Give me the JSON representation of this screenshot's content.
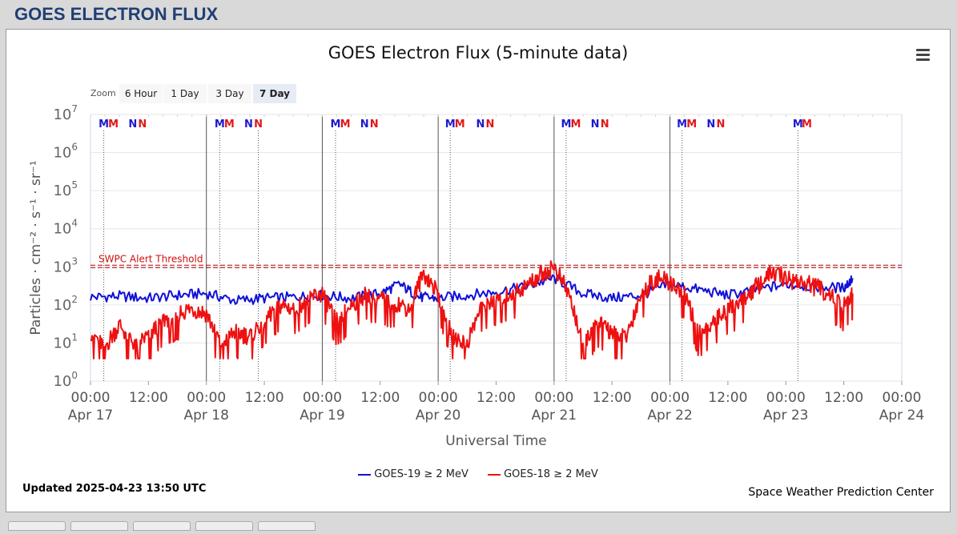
{
  "page": {
    "title": "GOES ELECTRON FLUX"
  },
  "chart": {
    "title": "GOES Electron Flux (5-minute data)",
    "zoom_label": "Zoom",
    "zoom_buttons": [
      "6 Hour",
      "1 Day",
      "3 Day",
      "7 Day"
    ],
    "zoom_selected": "7 Day",
    "updated": "Updated 2025-04-23 13:50 UTC",
    "credit": "Space Weather Prediction Center",
    "colors": {
      "goes19": "#1010d8",
      "goes18": "#ee1111",
      "threshold": "#b00000"
    }
  },
  "chart_data": {
    "type": "line",
    "title": "GOES Electron Flux (5-minute data)",
    "xlabel": "Universal Time",
    "ylabel": "Particles · cm⁻² · s⁻¹ · sr⁻¹",
    "y_scale": "log",
    "ylim": [
      1,
      10000000
    ],
    "xlim": [
      "2025-04-17 00:00",
      "2025-04-24 00:00"
    ],
    "y_ticks": [
      {
        "value": 1,
        "base": "10",
        "exp": "0"
      },
      {
        "value": 10,
        "base": "10",
        "exp": "1"
      },
      {
        "value": 100,
        "base": "10",
        "exp": "2"
      },
      {
        "value": 1000,
        "base": "10",
        "exp": "3"
      },
      {
        "value": 10000,
        "base": "10",
        "exp": "4"
      },
      {
        "value": 100000,
        "base": "10",
        "exp": "5"
      },
      {
        "value": 1000000,
        "base": "10",
        "exp": "6"
      },
      {
        "value": 10000000,
        "base": "10",
        "exp": "7"
      }
    ],
    "x_ticks": [
      {
        "at": "2025-04-17 00:00",
        "time": "00:00",
        "date": "Apr 17"
      },
      {
        "at": "2025-04-17 12:00",
        "time": "12:00",
        "date": ""
      },
      {
        "at": "2025-04-18 00:00",
        "time": "00:00",
        "date": "Apr 18"
      },
      {
        "at": "2025-04-18 12:00",
        "time": "12:00",
        "date": ""
      },
      {
        "at": "2025-04-19 00:00",
        "time": "00:00",
        "date": "Apr 19"
      },
      {
        "at": "2025-04-19 12:00",
        "time": "12:00",
        "date": ""
      },
      {
        "at": "2025-04-20 00:00",
        "time": "00:00",
        "date": "Apr 20"
      },
      {
        "at": "2025-04-20 12:00",
        "time": "12:00",
        "date": ""
      },
      {
        "at": "2025-04-21 00:00",
        "time": "00:00",
        "date": "Apr 21"
      },
      {
        "at": "2025-04-21 12:00",
        "time": "12:00",
        "date": ""
      },
      {
        "at": "2025-04-22 00:00",
        "time": "00:00",
        "date": "Apr 22"
      },
      {
        "at": "2025-04-22 12:00",
        "time": "12:00",
        "date": ""
      },
      {
        "at": "2025-04-23 00:00",
        "time": "00:00",
        "date": "Apr 23"
      },
      {
        "at": "2025-04-23 12:00",
        "time": "12:00",
        "date": ""
      },
      {
        "at": "2025-04-24 00:00",
        "time": "00:00",
        "date": "Apr 24"
      }
    ],
    "day_lines": [
      "2025-04-18 00:00",
      "2025-04-19 00:00",
      "2025-04-20 00:00",
      "2025-04-21 00:00",
      "2025-04-22 00:00"
    ],
    "threshold": {
      "value": 1000,
      "label": "SWPC Alert Threshold"
    },
    "markers": [
      {
        "letter": "M",
        "color": "blue",
        "at": "2025-04-17 02:45",
        "line": true
      },
      {
        "letter": "M",
        "color": "red",
        "at": "2025-04-17 04:45",
        "line": false
      },
      {
        "letter": "N",
        "color": "blue",
        "at": "2025-04-17 08:45",
        "line": false
      },
      {
        "letter": "N",
        "color": "red",
        "at": "2025-04-17 10:45",
        "line": false
      },
      {
        "letter": "M",
        "color": "blue",
        "at": "2025-04-18 02:45",
        "line": true
      },
      {
        "letter": "M",
        "color": "red",
        "at": "2025-04-18 04:45",
        "line": false
      },
      {
        "letter": "N",
        "color": "blue",
        "at": "2025-04-18 08:45",
        "line": false
      },
      {
        "letter": "N",
        "color": "red",
        "at": "2025-04-18 10:45",
        "line": true
      },
      {
        "letter": "M",
        "color": "blue",
        "at": "2025-04-19 02:45",
        "line": true
      },
      {
        "letter": "M",
        "color": "red",
        "at": "2025-04-19 04:45",
        "line": false
      },
      {
        "letter": "N",
        "color": "blue",
        "at": "2025-04-19 08:45",
        "line": false
      },
      {
        "letter": "N",
        "color": "red",
        "at": "2025-04-19 10:45",
        "line": false
      },
      {
        "letter": "M",
        "color": "blue",
        "at": "2025-04-20 02:30",
        "line": true
      },
      {
        "letter": "M",
        "color": "red",
        "at": "2025-04-20 04:30",
        "line": false
      },
      {
        "letter": "N",
        "color": "blue",
        "at": "2025-04-20 08:45",
        "line": false
      },
      {
        "letter": "N",
        "color": "red",
        "at": "2025-04-20 10:45",
        "line": false
      },
      {
        "letter": "M",
        "color": "blue",
        "at": "2025-04-21 02:30",
        "line": true
      },
      {
        "letter": "M",
        "color": "red",
        "at": "2025-04-21 04:30",
        "line": false
      },
      {
        "letter": "N",
        "color": "blue",
        "at": "2025-04-21 08:30",
        "line": false
      },
      {
        "letter": "N",
        "color": "red",
        "at": "2025-04-21 10:30",
        "line": false
      },
      {
        "letter": "M",
        "color": "blue",
        "at": "2025-04-22 02:30",
        "line": true
      },
      {
        "letter": "M",
        "color": "red",
        "at": "2025-04-22 04:30",
        "line": false
      },
      {
        "letter": "N",
        "color": "blue",
        "at": "2025-04-22 08:30",
        "line": false
      },
      {
        "letter": "N",
        "color": "red",
        "at": "2025-04-22 10:30",
        "line": false
      },
      {
        "letter": "M",
        "color": "blue",
        "at": "2025-04-23 02:30",
        "line": true
      },
      {
        "letter": "M",
        "color": "red",
        "at": "2025-04-23 04:20",
        "line": false
      }
    ],
    "series": [
      {
        "name": "GOES-19 ≥ 2 MeV",
        "color": "#1010d8",
        "times": [
          "2025-04-17 00:00",
          "2025-04-17 06:00",
          "2025-04-17 12:00",
          "2025-04-17 18:00",
          "2025-04-18 00:00",
          "2025-04-18 06:00",
          "2025-04-18 12:00",
          "2025-04-18 18:00",
          "2025-04-19 00:00",
          "2025-04-19 06:00",
          "2025-04-19 12:00",
          "2025-04-19 16:00",
          "2025-04-19 20:00",
          "2025-04-20 00:00",
          "2025-04-20 06:00",
          "2025-04-20 12:00",
          "2025-04-20 18:00",
          "2025-04-21 00:00",
          "2025-04-21 06:00",
          "2025-04-21 12:00",
          "2025-04-21 18:00",
          "2025-04-22 00:00",
          "2025-04-22 06:00",
          "2025-04-22 12:00",
          "2025-04-22 18:00",
          "2025-04-23 00:00",
          "2025-04-23 06:00",
          "2025-04-23 12:00",
          "2025-04-23 13:50"
        ],
        "values": [
          160,
          170,
          150,
          180,
          200,
          130,
          150,
          160,
          180,
          150,
          200,
          350,
          160,
          150,
          180,
          220,
          300,
          500,
          200,
          150,
          180,
          350,
          250,
          180,
          250,
          350,
          300,
          280,
          500
        ]
      },
      {
        "name": "GOES-18 ≥ 2 MeV",
        "color": "#ee1111",
        "times": [
          "2025-04-17 00:00",
          "2025-04-17 03:00",
          "2025-04-17 06:00",
          "2025-04-17 09:00",
          "2025-04-17 12:00",
          "2025-04-17 15:00",
          "2025-04-17 18:00",
          "2025-04-17 21:00",
          "2025-04-18 00:00",
          "2025-04-18 03:00",
          "2025-04-18 06:00",
          "2025-04-18 09:00",
          "2025-04-18 12:00",
          "2025-04-18 15:00",
          "2025-04-18 18:00",
          "2025-04-18 21:00",
          "2025-04-19 00:00",
          "2025-04-19 03:00",
          "2025-04-19 06:00",
          "2025-04-19 09:00",
          "2025-04-19 12:00",
          "2025-04-19 15:00",
          "2025-04-19 18:00",
          "2025-04-19 21:00",
          "2025-04-20 00:00",
          "2025-04-20 03:00",
          "2025-04-20 06:00",
          "2025-04-20 09:00",
          "2025-04-20 12:00",
          "2025-04-20 15:00",
          "2025-04-20 18:00",
          "2025-04-20 21:00",
          "2025-04-21 00:00",
          "2025-04-21 03:00",
          "2025-04-21 06:00",
          "2025-04-21 09:00",
          "2025-04-21 12:00",
          "2025-04-21 15:00",
          "2025-04-21 18:00",
          "2025-04-21 21:00",
          "2025-04-22 00:00",
          "2025-04-22 03:00",
          "2025-04-22 06:00",
          "2025-04-22 09:00",
          "2025-04-22 12:00",
          "2025-04-22 15:00",
          "2025-04-22 18:00",
          "2025-04-22 21:00",
          "2025-04-23 00:00",
          "2025-04-23 03:00",
          "2025-04-23 06:00",
          "2025-04-23 09:00",
          "2025-04-23 12:00",
          "2025-04-23 13:50"
        ],
        "values": [
          20,
          8,
          30,
          10,
          15,
          40,
          60,
          80,
          60,
          10,
          20,
          15,
          40,
          100,
          80,
          150,
          200,
          40,
          100,
          200,
          150,
          120,
          80,
          700,
          200,
          15,
          10,
          100,
          150,
          200,
          300,
          600,
          1000,
          200,
          10,
          40,
          20,
          15,
          200,
          500,
          400,
          200,
          20,
          40,
          80,
          150,
          300,
          700,
          500,
          400,
          300,
          200,
          100,
          200
        ]
      }
    ]
  }
}
